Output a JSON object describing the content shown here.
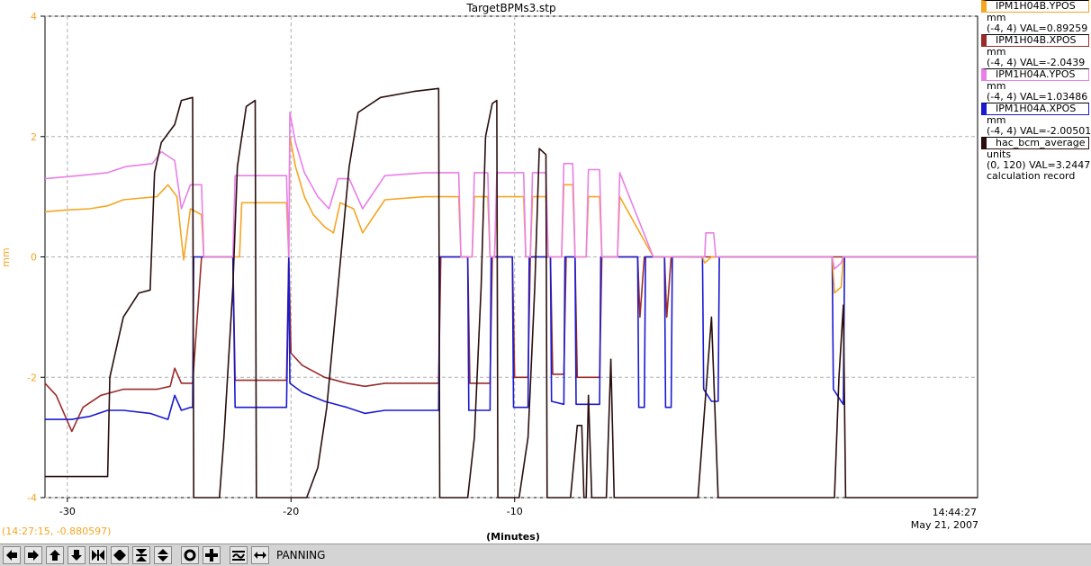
{
  "chart_data": {
    "type": "line",
    "title": "TargetBPMs3.stp",
    "xlabel": "(Minutes)",
    "ylabel": "mm",
    "xlim": [
      -31,
      10.7
    ],
    "ylim": [
      -4,
      4
    ],
    "xticks": [
      -30,
      -20,
      -10
    ],
    "yticks": [
      -4,
      -2,
      0,
      2,
      4
    ],
    "grid": true,
    "legend_position": "right",
    "end_time": "14:44:27",
    "end_date": "May 21, 2007",
    "series": [
      {
        "name": "IPM1H04B.YPOS",
        "color": "#f5a623",
        "unit": "mm",
        "range": "(-4, 4)",
        "value_label": "VAL=0.89259",
        "points": [
          [
            -31,
            0.75
          ],
          [
            -30,
            0.78
          ],
          [
            -29,
            0.8
          ],
          [
            -28.2,
            0.85
          ],
          [
            -27.5,
            0.95
          ],
          [
            -26,
            1.0
          ],
          [
            -25.5,
            1.2
          ],
          [
            -25.1,
            1.0
          ],
          [
            -24.8,
            -0.05
          ],
          [
            -24.5,
            0.8
          ],
          [
            -24,
            0.7
          ],
          [
            -23.9,
            0.0
          ],
          [
            -22.3,
            0.0
          ],
          [
            -22.2,
            0.9
          ],
          [
            -20.2,
            0.9
          ],
          [
            -20.1,
            0.0
          ],
          [
            -20.05,
            2.0
          ],
          [
            -19.8,
            1.5
          ],
          [
            -19.4,
            1.0
          ],
          [
            -19,
            0.7
          ],
          [
            -18.5,
            0.5
          ],
          [
            -18.1,
            0.4
          ],
          [
            -17.8,
            0.9
          ],
          [
            -17.2,
            0.8
          ],
          [
            -16.8,
            0.4
          ],
          [
            -15.8,
            0.95
          ],
          [
            -14,
            1.0
          ],
          [
            -12.5,
            1.0
          ],
          [
            -12.4,
            0.0
          ],
          [
            -11.9,
            0.0
          ],
          [
            -11.8,
            1.0
          ],
          [
            -11.2,
            1.0
          ],
          [
            -11.1,
            0.0
          ],
          [
            -10.9,
            0.0
          ],
          [
            -10.8,
            1.0
          ],
          [
            -9.6,
            1.0
          ],
          [
            -9.5,
            0.0
          ],
          [
            -9.3,
            0.0
          ],
          [
            -9.2,
            1.0
          ],
          [
            -8.6,
            1.0
          ],
          [
            -8.5,
            0.0
          ],
          [
            -7.9,
            0.0
          ],
          [
            -7.8,
            1.2
          ],
          [
            -7.4,
            1.2
          ],
          [
            -7.3,
            0.0
          ],
          [
            -6.8,
            0.0
          ],
          [
            -6.7,
            1.0
          ],
          [
            -6.2,
            1.0
          ],
          [
            -6.1,
            0.0
          ],
          [
            -5.4,
            0.0
          ],
          [
            -5.3,
            1.0
          ],
          [
            -3.8,
            0.0
          ],
          [
            -1.6,
            0.0
          ],
          [
            -1.5,
            -0.1
          ],
          [
            -1.2,
            0.0
          ],
          [
            4.2,
            0.0
          ],
          [
            4.3,
            -0.6
          ],
          [
            4.6,
            -0.5
          ],
          [
            4.7,
            0.0
          ],
          [
            10.7,
            0.0
          ]
        ]
      },
      {
        "name": "IPM1H04B.XPOS",
        "color": "#9b2b2b",
        "unit": "mm",
        "range": "(-4, 4)",
        "value_label": "VAL=-2.0439",
        "points": [
          [
            -31,
            -2.1
          ],
          [
            -30.5,
            -2.3
          ],
          [
            -29.8,
            -2.9
          ],
          [
            -29.3,
            -2.5
          ],
          [
            -28.5,
            -2.3
          ],
          [
            -27.5,
            -2.2
          ],
          [
            -26,
            -2.2
          ],
          [
            -25.4,
            -2.15
          ],
          [
            -25.2,
            -1.85
          ],
          [
            -24.9,
            -2.1
          ],
          [
            -24.4,
            -2.1
          ],
          [
            -24,
            0.0
          ],
          [
            -22.6,
            0.0
          ],
          [
            -22.5,
            -2.05
          ],
          [
            -20.2,
            -2.05
          ],
          [
            -20.1,
            0.0
          ],
          [
            -20.0,
            -1.6
          ],
          [
            -19.5,
            -1.8
          ],
          [
            -18.5,
            -2.0
          ],
          [
            -17.5,
            -2.1
          ],
          [
            -16.7,
            -2.15
          ],
          [
            -15.8,
            -2.1
          ],
          [
            -13.4,
            -2.1
          ],
          [
            -13.3,
            0.0
          ],
          [
            -12.1,
            0.0
          ],
          [
            -12.0,
            -2.1
          ],
          [
            -11.1,
            -2.1
          ],
          [
            -11.0,
            0.0
          ],
          [
            -10.1,
            0.0
          ],
          [
            -10.0,
            -2.0
          ],
          [
            -9.4,
            -2.0
          ],
          [
            -9.3,
            0.0
          ],
          [
            -8.4,
            0.0
          ],
          [
            -8.3,
            -1.95
          ],
          [
            -7.8,
            -1.95
          ],
          [
            -7.7,
            0.0
          ],
          [
            -7.3,
            0.0
          ],
          [
            -7.2,
            -2.0
          ],
          [
            -6.2,
            -2.0
          ],
          [
            -6.1,
            0.0
          ],
          [
            -4.5,
            0.0
          ],
          [
            -4.4,
            -1.0
          ],
          [
            -4.2,
            0.0
          ],
          [
            -3.3,
            0.0
          ],
          [
            -3.2,
            -1.0
          ],
          [
            -3.0,
            0.0
          ],
          [
            10.7,
            0.0
          ]
        ]
      },
      {
        "name": "IPM1H04A.YPOS",
        "color": "#e87fe8",
        "unit": "mm",
        "range": "(-4, 4)",
        "value_label": "VAL=1.03486",
        "points": [
          [
            -31,
            1.3
          ],
          [
            -29.5,
            1.35
          ],
          [
            -28.2,
            1.4
          ],
          [
            -27.4,
            1.5
          ],
          [
            -26.2,
            1.55
          ],
          [
            -25.8,
            1.75
          ],
          [
            -25.2,
            1.6
          ],
          [
            -24.9,
            0.8
          ],
          [
            -24.5,
            1.2
          ],
          [
            -24,
            1.2
          ],
          [
            -23.9,
            0.0
          ],
          [
            -22.6,
            0.0
          ],
          [
            -22.5,
            1.35
          ],
          [
            -21.5,
            1.35
          ],
          [
            -20.2,
            1.35
          ],
          [
            -20.1,
            0.0
          ],
          [
            -20.05,
            2.4
          ],
          [
            -19.8,
            1.9
          ],
          [
            -19.4,
            1.4
          ],
          [
            -18.8,
            1.0
          ],
          [
            -18.3,
            0.8
          ],
          [
            -17.9,
            1.3
          ],
          [
            -17.4,
            1.3
          ],
          [
            -16.8,
            0.8
          ],
          [
            -15.8,
            1.35
          ],
          [
            -14,
            1.4
          ],
          [
            -12.5,
            1.4
          ],
          [
            -12.4,
            0.0
          ],
          [
            -11.9,
            0.0
          ],
          [
            -11.8,
            1.4
          ],
          [
            -11.2,
            1.4
          ],
          [
            -11.1,
            0.0
          ],
          [
            -10.9,
            0.0
          ],
          [
            -10.8,
            1.4
          ],
          [
            -9.6,
            1.4
          ],
          [
            -9.5,
            0.0
          ],
          [
            -9.3,
            0.0
          ],
          [
            -9.2,
            1.4
          ],
          [
            -8.6,
            1.4
          ],
          [
            -8.5,
            0.0
          ],
          [
            -7.9,
            0.0
          ],
          [
            -7.8,
            1.55
          ],
          [
            -7.4,
            1.55
          ],
          [
            -7.3,
            0.0
          ],
          [
            -6.8,
            0.0
          ],
          [
            -6.7,
            1.45
          ],
          [
            -6.2,
            1.45
          ],
          [
            -6.1,
            0.0
          ],
          [
            -5.4,
            0.0
          ],
          [
            -5.3,
            1.4
          ],
          [
            -3.8,
            0.0
          ],
          [
            -1.5,
            0.0
          ],
          [
            -1.45,
            0.4
          ],
          [
            -1.1,
            0.4
          ],
          [
            -1.0,
            0.0
          ],
          [
            4.2,
            0.0
          ],
          [
            4.3,
            -0.2
          ],
          [
            4.6,
            -0.1
          ],
          [
            4.7,
            0.0
          ],
          [
            10.7,
            0.0
          ]
        ]
      },
      {
        "name": "IPM1H04A.XPOS",
        "color": "#1a1ad0",
        "unit": "mm",
        "range": "(-4, 4)",
        "value_label": "VAL=-2.00501",
        "points": [
          [
            -31,
            -2.7
          ],
          [
            -29.8,
            -2.7
          ],
          [
            -29,
            -2.65
          ],
          [
            -28.2,
            -2.55
          ],
          [
            -27.5,
            -2.55
          ],
          [
            -26.3,
            -2.6
          ],
          [
            -25.5,
            -2.7
          ],
          [
            -25.2,
            -2.3
          ],
          [
            -24.9,
            -2.55
          ],
          [
            -24.5,
            -2.5
          ],
          [
            -24.4,
            -2.5
          ],
          [
            -24.35,
            0.0
          ],
          [
            -22.6,
            0.0
          ],
          [
            -22.5,
            -2.5
          ],
          [
            -20.2,
            -2.5
          ],
          [
            -20.1,
            0.0
          ],
          [
            -20.05,
            -2.1
          ],
          [
            -19.5,
            -2.25
          ],
          [
            -18.5,
            -2.4
          ],
          [
            -17.5,
            -2.5
          ],
          [
            -16.7,
            -2.6
          ],
          [
            -15.8,
            -2.55
          ],
          [
            -13.4,
            -2.55
          ],
          [
            -13.35,
            0.0
          ],
          [
            -12.1,
            0.0
          ],
          [
            -12.05,
            -2.55
          ],
          [
            -11.1,
            -2.55
          ],
          [
            -11.05,
            0.0
          ],
          [
            -10.1,
            0.0
          ],
          [
            -10.05,
            -2.5
          ],
          [
            -9.4,
            -2.5
          ],
          [
            -9.35,
            0.0
          ],
          [
            -8.4,
            0.0
          ],
          [
            -8.35,
            -2.4
          ],
          [
            -7.8,
            -2.45
          ],
          [
            -7.75,
            0.0
          ],
          [
            -7.3,
            0.0
          ],
          [
            -7.25,
            -2.45
          ],
          [
            -6.2,
            -2.45
          ],
          [
            -6.15,
            0.0
          ],
          [
            -4.5,
            0.0
          ],
          [
            -4.45,
            -2.5
          ],
          [
            -4.2,
            -2.5
          ],
          [
            -4.15,
            0.0
          ],
          [
            -3.3,
            0.0
          ],
          [
            -3.25,
            -2.5
          ],
          [
            -3.0,
            -2.5
          ],
          [
            -2.95,
            0.0
          ],
          [
            -1.6,
            0.0
          ],
          [
            -1.55,
            -2.2
          ],
          [
            -1.2,
            -2.4
          ],
          [
            -0.9,
            -2.4
          ],
          [
            -0.85,
            0.0
          ],
          [
            4.2,
            0.0
          ],
          [
            4.25,
            -2.2
          ],
          [
            4.6,
            -2.4
          ],
          [
            4.7,
            -2.45
          ],
          [
            4.75,
            0.0
          ],
          [
            10.7,
            0.0
          ]
        ]
      },
      {
        "name": "hac_bcm_average",
        "color": "#2a0e0e",
        "unit": "units",
        "range": "(0, 120)",
        "value_label": "VAL=3.2447",
        "note": "calculation record",
        "points": [
          [
            -31,
            -3.65
          ],
          [
            -28.2,
            -3.65
          ],
          [
            -28.1,
            -2.0
          ],
          [
            -27.5,
            -1.0
          ],
          [
            -26.8,
            -0.6
          ],
          [
            -26.3,
            -0.55
          ],
          [
            -26.1,
            1.4
          ],
          [
            -25.8,
            1.9
          ],
          [
            -25.2,
            2.2
          ],
          [
            -24.9,
            2.6
          ],
          [
            -24.4,
            2.65
          ],
          [
            -24.35,
            -4.0
          ],
          [
            -23.2,
            -4.0
          ],
          [
            -23.0,
            -3.0
          ],
          [
            -22.6,
            -0.5
          ],
          [
            -22.4,
            1.5
          ],
          [
            -22.0,
            2.5
          ],
          [
            -21.6,
            2.6
          ],
          [
            -21.55,
            -4.0
          ],
          [
            -20.1,
            -4.0
          ],
          [
            -19.3,
            -4.0
          ],
          [
            -18.8,
            -3.5
          ],
          [
            -18.4,
            -2.5
          ],
          [
            -17.9,
            -0.5
          ],
          [
            -17.4,
            1.5
          ],
          [
            -17.0,
            2.4
          ],
          [
            -16.0,
            2.65
          ],
          [
            -14.5,
            2.75
          ],
          [
            -13.4,
            2.8
          ],
          [
            -13.35,
            -4.0
          ],
          [
            -12.1,
            -4.0
          ],
          [
            -11.8,
            -3.0
          ],
          [
            -11.5,
            -0.5
          ],
          [
            -11.3,
            2.0
          ],
          [
            -11.0,
            2.55
          ],
          [
            -10.8,
            2.6
          ],
          [
            -10.75,
            -4.0
          ],
          [
            -9.8,
            -4.0
          ],
          [
            -9.4,
            -3.0
          ],
          [
            -9.1,
            -0.5
          ],
          [
            -8.9,
            1.8
          ],
          [
            -8.6,
            1.7
          ],
          [
            -8.55,
            -4.0
          ],
          [
            -7.5,
            -4.0
          ],
          [
            -7.2,
            -2.8
          ],
          [
            -7.0,
            -2.8
          ],
          [
            -6.9,
            -4.0
          ],
          [
            -6.8,
            -4.0
          ],
          [
            -6.7,
            -2.3
          ],
          [
            -6.55,
            -4.0
          ],
          [
            -5.9,
            -4.0
          ],
          [
            -5.7,
            -1.7
          ],
          [
            -5.55,
            -4.0
          ],
          [
            -1.8,
            -4.0
          ],
          [
            -1.5,
            -2.5
          ],
          [
            -1.2,
            -1.0
          ],
          [
            -0.9,
            -4.0
          ],
          [
            4.3,
            -4.0
          ],
          [
            4.5,
            -2.0
          ],
          [
            4.7,
            -0.8
          ],
          [
            4.8,
            -4.0
          ],
          [
            10.7,
            -4.0
          ]
        ]
      }
    ]
  },
  "cursor_readout": "(14:27:15, -0.880597)",
  "toolbar": {
    "mode_label": "PANNING",
    "buttons": [
      "arrow-left-icon",
      "arrow-right-icon",
      "arrow-up-icon",
      "arrow-down-icon",
      "zoom-x-in-icon",
      "zoom-x-out-icon",
      "zoom-y-in-icon",
      "zoom-y-out-icon",
      "reset-icon",
      "crosshair-icon",
      "autoscale-icon",
      "pan-icon"
    ]
  }
}
